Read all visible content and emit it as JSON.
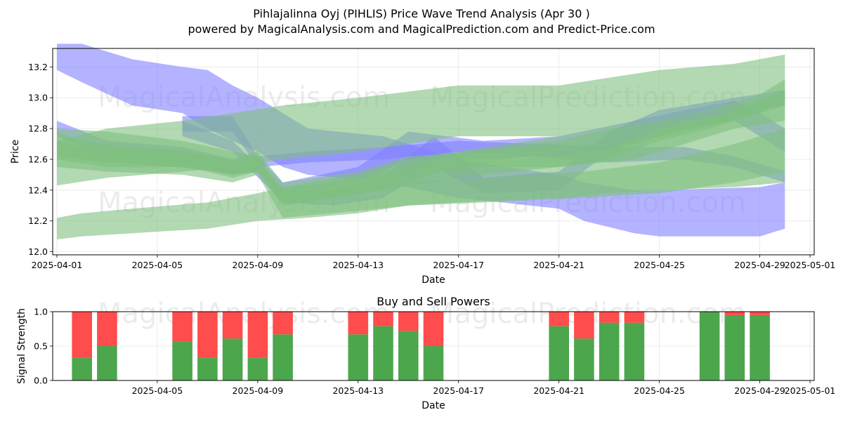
{
  "title": "Pihlajalinna Oyj (PIHLIS) Price Wave Trend Analysis (Apr 30 )",
  "subtitle": "powered by MagicalAnalysis.com and MagicalPrediction.com and Predict-Price.com",
  "watermarks": [
    "MagicalAnalysis.com",
    "MagicalPrediction.com"
  ],
  "colors": {
    "buy": "#4ca64c",
    "sell": "#ff4c4c",
    "blue_band": "#8080ff",
    "green_band": "#7fbf7f"
  },
  "chart_data": [
    {
      "type": "area",
      "title": "",
      "xlabel": "Date",
      "ylabel": "Price",
      "xlim": [
        "2025-03-31T20:00",
        "2025-05-01T04:00"
      ],
      "ylim": [
        11.98,
        13.32
      ],
      "x_ticks": [
        "2025-04-01",
        "2025-04-05",
        "2025-04-09",
        "2025-04-13",
        "2025-04-17",
        "2025-04-21",
        "2025-04-25",
        "2025-04-29",
        "2025-05-01"
      ],
      "x_tick_labels": [
        "2025-04-01",
        "2025-04-05",
        "2025-04-09",
        "2025-04-13",
        "2025-04-17",
        "2025-04-21",
        "2025-04-25",
        "2025-04-29",
        "2025-05-01"
      ],
      "y_ticks": [
        12.0,
        12.2,
        12.4,
        12.6,
        12.8,
        13.0,
        13.2
      ],
      "y_tick_labels": [
        "12.0",
        "12.2",
        "12.4",
        "12.6",
        "12.8",
        "13.0",
        "13.2"
      ],
      "grid": true,
      "series": [
        {
          "color": "blue",
          "x": [
            "2025-04-01",
            "2025-04-02",
            "2025-04-04",
            "2025-04-06",
            "2025-04-07",
            "2025-04-08",
            "2025-04-09",
            "2025-04-10",
            "2025-04-11",
            "2025-04-14",
            "2025-04-17",
            "2025-04-21",
            "2025-04-22",
            "2025-04-24",
            "2025-04-25",
            "2025-04-29",
            "2025-04-30"
          ],
          "low": [
            13.18,
            13.1,
            12.95,
            12.9,
            12.8,
            12.72,
            12.65,
            12.55,
            12.5,
            12.45,
            12.35,
            12.28,
            12.2,
            12.12,
            12.1,
            12.1,
            12.15
          ],
          "high": [
            13.35,
            13.35,
            13.25,
            13.2,
            13.18,
            13.08,
            13.0,
            12.9,
            12.8,
            12.75,
            12.6,
            12.5,
            12.45,
            12.4,
            12.4,
            12.42,
            12.45
          ]
        },
        {
          "color": "blue",
          "x": [
            "2025-04-01",
            "2025-04-03",
            "2025-04-06",
            "2025-04-08",
            "2025-04-09",
            "2025-04-10",
            "2025-04-13",
            "2025-04-15",
            "2025-04-18",
            "2025-04-21",
            "2025-04-24",
            "2025-04-26",
            "2025-04-28",
            "2025-04-29",
            "2025-04-30"
          ],
          "low": [
            12.75,
            12.62,
            12.58,
            12.5,
            12.52,
            12.38,
            12.45,
            12.6,
            12.6,
            12.62,
            12.7,
            12.8,
            12.85,
            12.75,
            12.65
          ],
          "high": [
            12.85,
            12.72,
            12.68,
            12.6,
            12.62,
            12.45,
            12.55,
            12.78,
            12.72,
            12.75,
            12.85,
            12.92,
            12.98,
            12.9,
            12.8
          ]
        },
        {
          "color": "blue",
          "x": [
            "2025-04-06",
            "2025-04-08",
            "2025-04-09",
            "2025-04-11",
            "2025-04-14",
            "2025-04-17",
            "2025-04-20",
            "2025-04-23",
            "2025-04-26",
            "2025-04-28",
            "2025-04-30"
          ],
          "low": [
            12.78,
            12.78,
            12.55,
            12.58,
            12.6,
            12.65,
            12.62,
            12.58,
            12.6,
            12.55,
            12.45
          ],
          "high": [
            12.88,
            12.88,
            12.62,
            12.65,
            12.68,
            12.72,
            12.7,
            12.68,
            12.68,
            12.62,
            12.52
          ]
        },
        {
          "color": "blue",
          "x": [
            "2025-04-06",
            "2025-04-08",
            "2025-04-10",
            "2025-04-12",
            "2025-04-14",
            "2025-04-16",
            "2025-04-18",
            "2025-04-21",
            "2025-04-23",
            "2025-04-25",
            "2025-04-28",
            "2025-04-30"
          ],
          "low": [
            12.75,
            12.65,
            12.32,
            12.3,
            12.35,
            12.55,
            12.38,
            12.4,
            12.65,
            12.8,
            12.9,
            12.95
          ],
          "high": [
            12.85,
            12.72,
            12.4,
            12.4,
            12.48,
            12.75,
            12.48,
            12.52,
            12.78,
            12.92,
            13.0,
            13.05
          ]
        },
        {
          "color": "green",
          "x": [
            "2025-04-01",
            "2025-04-02",
            "2025-04-04",
            "2025-04-07",
            "2025-04-09",
            "2025-04-11",
            "2025-04-13",
            "2025-04-15",
            "2025-04-17",
            "2025-04-21",
            "2025-04-23",
            "2025-04-25",
            "2025-04-28",
            "2025-04-30"
          ],
          "low": [
            12.08,
            12.1,
            12.12,
            12.15,
            12.2,
            12.22,
            12.25,
            12.3,
            12.32,
            12.35,
            12.38,
            12.4,
            12.42,
            12.45
          ],
          "high": [
            12.22,
            12.25,
            12.28,
            12.32,
            12.38,
            12.45,
            12.5,
            12.6,
            12.65,
            12.72,
            12.8,
            12.85,
            12.9,
            12.95
          ]
        },
        {
          "color": "green",
          "x": [
            "2025-04-01",
            "2025-04-03",
            "2025-04-06",
            "2025-04-08",
            "2025-04-10",
            "2025-04-13",
            "2025-04-17",
            "2025-04-21",
            "2025-04-25",
            "2025-04-28",
            "2025-04-30"
          ],
          "low": [
            12.43,
            12.48,
            12.52,
            12.55,
            12.6,
            12.65,
            12.75,
            12.75,
            12.85,
            12.92,
            12.95
          ],
          "high": [
            12.72,
            12.8,
            12.85,
            12.9,
            12.95,
            13.0,
            13.08,
            13.08,
            13.18,
            13.22,
            13.28
          ]
        },
        {
          "color": "green",
          "x": [
            "2025-04-01",
            "2025-04-03",
            "2025-04-06",
            "2025-04-08",
            "2025-04-09",
            "2025-04-10",
            "2025-04-12",
            "2025-04-15",
            "2025-04-18",
            "2025-04-22",
            "2025-04-25",
            "2025-04-28",
            "2025-04-30"
          ],
          "low": [
            12.55,
            12.52,
            12.5,
            12.45,
            12.5,
            12.22,
            12.25,
            12.3,
            12.32,
            12.35,
            12.38,
            12.45,
            12.52
          ],
          "high": [
            12.8,
            12.78,
            12.72,
            12.65,
            12.62,
            12.38,
            12.4,
            12.45,
            12.48,
            12.52,
            12.58,
            12.7,
            12.8
          ]
        },
        {
          "color": "green",
          "x": [
            "2025-04-01",
            "2025-04-03",
            "2025-04-06",
            "2025-04-08",
            "2025-04-09",
            "2025-04-10",
            "2025-04-13",
            "2025-04-15",
            "2025-04-18",
            "2025-04-21",
            "2025-04-24",
            "2025-04-26",
            "2025-04-28",
            "2025-04-30"
          ],
          "low": [
            12.6,
            12.55,
            12.55,
            12.5,
            12.55,
            12.35,
            12.4,
            12.5,
            12.55,
            12.55,
            12.6,
            12.7,
            12.8,
            12.85
          ],
          "high": [
            12.72,
            12.65,
            12.65,
            12.6,
            12.65,
            12.45,
            12.52,
            12.62,
            12.65,
            12.68,
            12.72,
            12.82,
            12.92,
            13.0
          ]
        },
        {
          "color": "green",
          "x": [
            "2025-04-01",
            "2025-04-02",
            "2025-04-04",
            "2025-04-06",
            "2025-04-07",
            "2025-04-08",
            "2025-04-09",
            "2025-04-10",
            "2025-04-11",
            "2025-04-13",
            "2025-04-15",
            "2025-04-17",
            "2025-04-19",
            "2025-04-21",
            "2025-04-23",
            "2025-04-25",
            "2025-04-27",
            "2025-04-29",
            "2025-04-30"
          ],
          "low": [
            12.68,
            12.6,
            12.58,
            12.55,
            12.52,
            12.48,
            12.52,
            12.32,
            12.33,
            12.38,
            12.45,
            12.55,
            12.6,
            12.65,
            12.7,
            12.75,
            12.82,
            12.9,
            13.0
          ],
          "high": [
            12.78,
            12.72,
            12.68,
            12.66,
            12.62,
            12.58,
            12.6,
            12.42,
            12.43,
            12.48,
            12.55,
            12.65,
            12.7,
            12.75,
            12.8,
            12.85,
            12.92,
            13.02,
            13.12
          ]
        },
        {
          "color": "green",
          "x": [
            "2025-04-01",
            "2025-04-03",
            "2025-04-05",
            "2025-04-07",
            "2025-04-08",
            "2025-04-09",
            "2025-04-10",
            "2025-04-12",
            "2025-04-14",
            "2025-04-16",
            "2025-04-18",
            "2025-04-21",
            "2025-04-23",
            "2025-04-25",
            "2025-04-27",
            "2025-04-29",
            "2025-04-30"
          ],
          "low": [
            12.62,
            12.58,
            12.56,
            12.53,
            12.5,
            12.52,
            12.3,
            12.35,
            12.4,
            12.45,
            12.5,
            12.55,
            12.6,
            12.72,
            12.8,
            12.9,
            12.95
          ],
          "high": [
            12.7,
            12.66,
            12.64,
            12.61,
            12.58,
            12.6,
            12.38,
            12.43,
            12.48,
            12.53,
            12.58,
            12.63,
            12.68,
            12.8,
            12.88,
            12.98,
            13.05
          ]
        }
      ]
    },
    {
      "type": "bar",
      "title": "Buy and Sell Powers",
      "xlabel": "Date",
      "ylabel": "Signal Strength",
      "xlim": [
        "2025-03-31T20:00",
        "2025-05-01T04:00"
      ],
      "ylim": [
        0,
        1.0
      ],
      "x_ticks": [
        "2025-04-05",
        "2025-04-09",
        "2025-04-13",
        "2025-04-17",
        "2025-04-21",
        "2025-04-25",
        "2025-04-29",
        "2025-05-01"
      ],
      "x_tick_labels": [
        "2025-04-05",
        "2025-04-09",
        "2025-04-13",
        "2025-04-17",
        "2025-04-21",
        "2025-04-25",
        "2025-04-29",
        "2025-05-01"
      ],
      "y_ticks": [
        0.0,
        0.5,
        1.0
      ],
      "y_tick_labels": [
        "0.0",
        "0.5",
        "1.0"
      ],
      "grid": true,
      "categories": [
        "2025-04-02",
        "2025-04-03",
        "2025-04-06",
        "2025-04-07",
        "2025-04-08",
        "2025-04-09",
        "2025-04-10",
        "2025-04-13",
        "2025-04-14",
        "2025-04-15",
        "2025-04-16",
        "2025-04-21",
        "2025-04-22",
        "2025-04-23",
        "2025-04-24",
        "2025-04-27",
        "2025-04-28",
        "2025-04-29"
      ],
      "series": [
        {
          "values": [
            0.33,
            0.5,
            0.57,
            0.33,
            0.61,
            0.33,
            0.67,
            0.67,
            0.79,
            0.72,
            0.5,
            0.79,
            0.61,
            0.84,
            0.84,
            1.0,
            0.95,
            0.95
          ]
        },
        {
          "values": [
            0.67,
            0.5,
            0.43,
            0.67,
            0.39,
            0.67,
            0.33,
            0.33,
            0.21,
            0.28,
            0.5,
            0.21,
            0.39,
            0.16,
            0.16,
            0.0,
            0.05,
            0.05
          ]
        }
      ]
    }
  ]
}
